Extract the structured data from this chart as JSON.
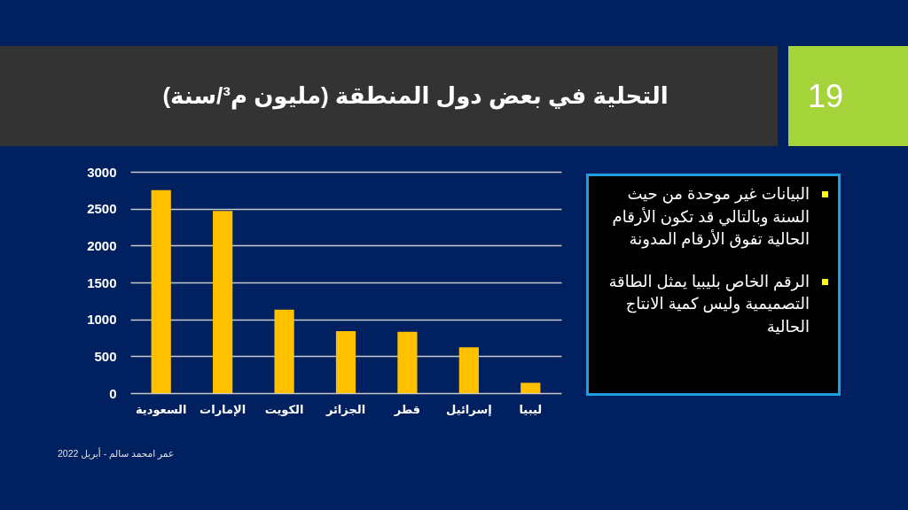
{
  "chart_data": {
    "type": "bar",
    "title": "التحلية في بعض دول المنطقة (مليون م³/سنة)",
    "categories": [
      "السعودية",
      "الإمارات",
      "الكويت",
      "الجزائر",
      "قطر",
      "إسرائيل",
      "ليبيا"
    ],
    "values": [
      2750,
      2470,
      1130,
      840,
      830,
      620,
      140
    ],
    "color": "#ffc000",
    "ylim": [
      0,
      3000
    ],
    "yticks": [
      0,
      500,
      1000,
      1500,
      2000,
      2500,
      3000
    ],
    "grid": "y",
    "annotations": [
      "19",
      "البيانات غير موحدة من حيث السنة وبالتالي قد تكون الأرقام الحالية تفوق الأرقام المدونة",
      "الرقم الخاص بليبيا يمثل الطاقة التصميمية وليس كمية الانتاج الحالية",
      "عمر امحمد سالم - أبريل 2022"
    ]
  }
}
